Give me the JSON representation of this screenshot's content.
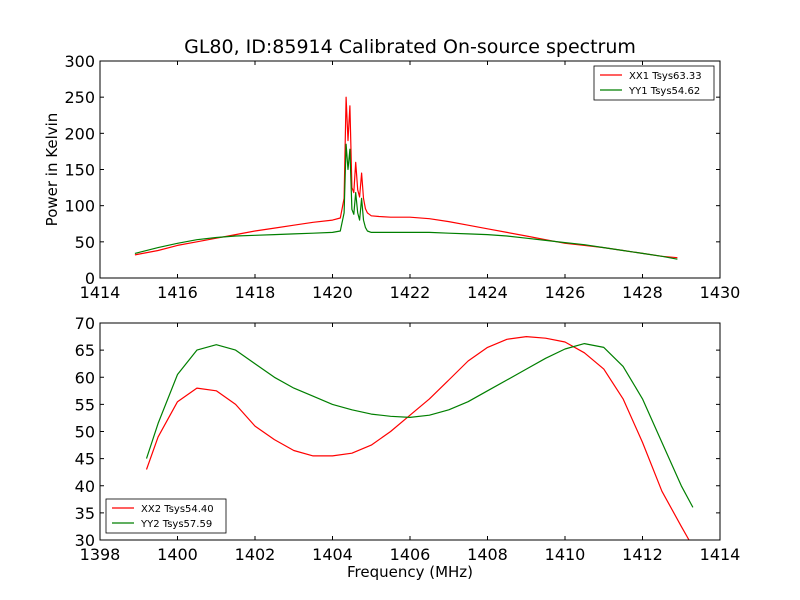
{
  "title": "GL80, ID:85914 Calibrated On-source spectrum",
  "chart_data": [
    {
      "type": "line",
      "xlabel": "",
      "ylabel": "Power in Kelvin",
      "xlim": [
        1414,
        1430
      ],
      "ylim": [
        0,
        300
      ],
      "xticks": [
        1414,
        1416,
        1418,
        1420,
        1422,
        1424,
        1426,
        1428,
        1430
      ],
      "yticks": [
        0,
        50,
        100,
        150,
        200,
        250,
        300
      ],
      "legend_placement": "top-right",
      "series": [
        {
          "name": "XX1 Tsys63.33",
          "color": "#ff0000",
          "x": [
            1414.9,
            1415.5,
            1416.0,
            1416.5,
            1417.0,
            1417.5,
            1418.0,
            1418.5,
            1419.0,
            1419.5,
            1420.0,
            1420.2,
            1420.3,
            1420.35,
            1420.4,
            1420.45,
            1420.5,
            1420.55,
            1420.6,
            1420.65,
            1420.7,
            1420.75,
            1420.8,
            1420.85,
            1420.9,
            1420.95,
            1421.0,
            1421.2,
            1421.5,
            1422.0,
            1422.5,
            1423.0,
            1423.5,
            1424.0,
            1424.5,
            1425.0,
            1425.5,
            1426.0,
            1426.5,
            1427.0,
            1427.5,
            1428.0,
            1428.5,
            1428.9
          ],
          "y": [
            32,
            38,
            45,
            50,
            55,
            60,
            65,
            69,
            73,
            77,
            80,
            83,
            110,
            250,
            190,
            238,
            125,
            118,
            160,
            122,
            112,
            145,
            110,
            96,
            90,
            88,
            86,
            85,
            84,
            84,
            82,
            78,
            73,
            68,
            63,
            58,
            53,
            48,
            45,
            42,
            38,
            34,
            30,
            28
          ]
        },
        {
          "name": "YY1 Tsys54.62",
          "color": "#007f00",
          "x": [
            1414.9,
            1415.5,
            1416.0,
            1416.5,
            1417.0,
            1417.5,
            1418.0,
            1418.5,
            1419.0,
            1419.5,
            1420.0,
            1420.2,
            1420.3,
            1420.35,
            1420.4,
            1420.45,
            1420.5,
            1420.55,
            1420.6,
            1420.65,
            1420.7,
            1420.75,
            1420.8,
            1420.85,
            1420.9,
            1421.0,
            1421.5,
            1422.0,
            1422.5,
            1423.0,
            1423.5,
            1424.0,
            1424.5,
            1425.0,
            1425.5,
            1426.0,
            1426.5,
            1427.0,
            1427.5,
            1428.0,
            1428.5,
            1428.9
          ],
          "y": [
            34,
            42,
            48,
            53,
            56,
            58,
            59,
            60,
            61,
            62,
            63,
            65,
            90,
            185,
            150,
            178,
            95,
            88,
            118,
            90,
            80,
            110,
            80,
            70,
            65,
            63,
            63,
            63,
            63,
            62,
            61,
            60,
            58,
            55,
            52,
            49,
            46,
            42,
            38,
            34,
            30,
            26
          ]
        }
      ]
    },
    {
      "type": "line",
      "xlabel": "Frequency (MHz)",
      "ylabel": "",
      "xlim": [
        1398,
        1414
      ],
      "ylim": [
        30,
        70
      ],
      "xticks": [
        1398,
        1400,
        1402,
        1404,
        1406,
        1408,
        1410,
        1412,
        1414
      ],
      "yticks": [
        30,
        35,
        40,
        45,
        50,
        55,
        60,
        65,
        70
      ],
      "legend_placement": "bottom-left",
      "series": [
        {
          "name": "XX2 Tsys54.40",
          "color": "#ff0000",
          "x": [
            1399.2,
            1399.5,
            1400.0,
            1400.5,
            1401.0,
            1401.5,
            1402.0,
            1402.5,
            1403.0,
            1403.5,
            1404.0,
            1404.5,
            1405.0,
            1405.5,
            1406.0,
            1406.5,
            1407.0,
            1407.5,
            1408.0,
            1408.5,
            1409.0,
            1409.5,
            1410.0,
            1410.5,
            1411.0,
            1411.5,
            1412.0,
            1412.5,
            1413.0,
            1413.2
          ],
          "y": [
            43,
            49,
            55.5,
            58,
            57.5,
            55,
            51,
            48.5,
            46.5,
            45.5,
            45.5,
            46,
            47.5,
            50,
            53,
            56,
            59.5,
            63,
            65.5,
            67,
            67.5,
            67.2,
            66.5,
            64.5,
            61.5,
            56,
            48,
            39,
            32.5,
            30
          ]
        },
        {
          "name": "YY2 Tsys57.59",
          "color": "#007f00",
          "x": [
            1399.2,
            1399.5,
            1400.0,
            1400.5,
            1401.0,
            1401.5,
            1402.0,
            1402.5,
            1403.0,
            1403.5,
            1404.0,
            1404.5,
            1405.0,
            1405.5,
            1406.0,
            1406.5,
            1407.0,
            1407.5,
            1408.0,
            1408.5,
            1409.0,
            1409.5,
            1410.0,
            1410.5,
            1411.0,
            1411.5,
            1412.0,
            1412.5,
            1413.0,
            1413.3
          ],
          "y": [
            45,
            51.5,
            60.5,
            65,
            66,
            65,
            62.5,
            60,
            58,
            56.5,
            55,
            54,
            53.2,
            52.8,
            52.6,
            53,
            54,
            55.5,
            57.5,
            59.5,
            61.5,
            63.5,
            65.2,
            66.2,
            65.5,
            62,
            56,
            48,
            40,
            36
          ]
        }
      ]
    }
  ]
}
